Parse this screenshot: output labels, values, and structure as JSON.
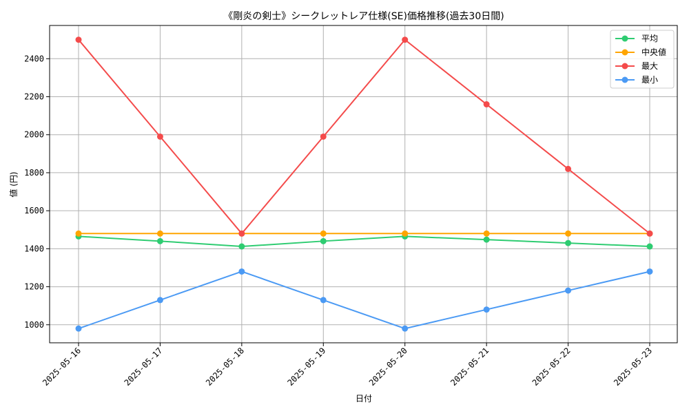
{
  "chart_data": {
    "type": "line",
    "title": "《剛炎の剣士》シークレットレア仕様(SE)価格推移(過去30日間)",
    "xlabel": "日付",
    "ylabel": "値 (円)",
    "categories": [
      "2025-05-16",
      "2025-05-17",
      "2025-05-18",
      "2025-05-19",
      "2025-05-20",
      "2025-05-21",
      "2025-05-22",
      "2025-05-23"
    ],
    "ylim": [
      905,
      2575
    ],
    "yticks": [
      1000,
      1200,
      1400,
      1600,
      1800,
      2000,
      2200,
      2400
    ],
    "grid": true,
    "legend_position": "top-right",
    "series": [
      {
        "name": "平均",
        "color": "#2ecc71",
        "values": [
          1465,
          1440,
          1412,
          1440,
          1465,
          1448,
          1430,
          1412
        ]
      },
      {
        "name": "中央値",
        "color": "#ffa500",
        "values": [
          1480,
          1480,
          1480,
          1480,
          1480,
          1480,
          1480,
          1480
        ]
      },
      {
        "name": "最大",
        "color": "#f44b4b",
        "values": [
          2500,
          1990,
          1480,
          1990,
          2500,
          2160,
          1820,
          1480
        ]
      },
      {
        "name": "最小",
        "color": "#4b9af4",
        "values": [
          980,
          1130,
          1280,
          1130,
          980,
          1080,
          1180,
          1280
        ]
      }
    ]
  }
}
